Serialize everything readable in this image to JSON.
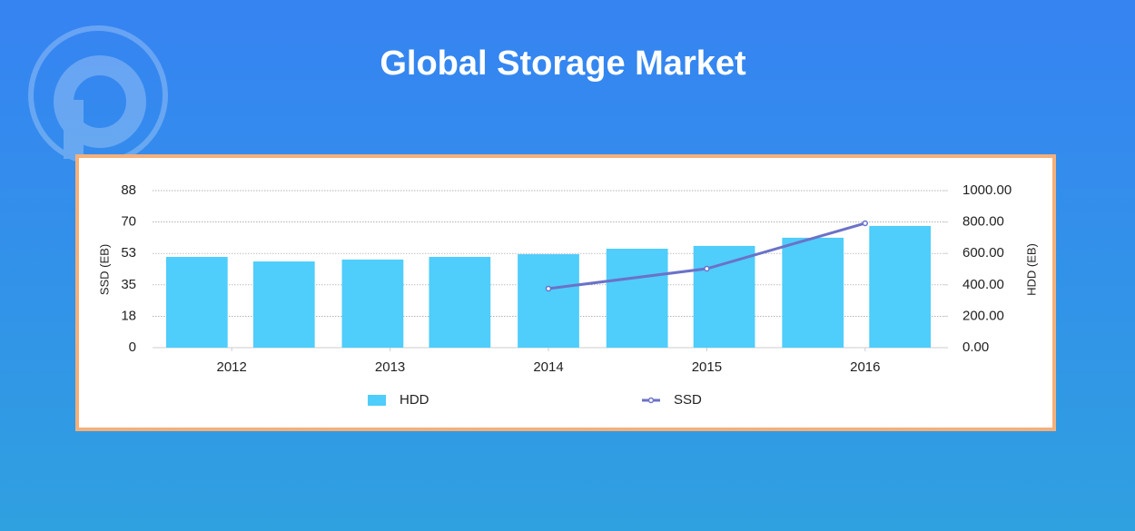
{
  "chart_data": {
    "type": "combo",
    "title": "Global Storage Market",
    "y_label": "SSD (EB)",
    "y2_label": "HDD (EB)",
    "xlim": [
      2011.5,
      2016.5
    ],
    "xticks": [
      2012,
      2013,
      2014,
      2015,
      2016
    ],
    "ylim": [
      0,
      87.5
    ],
    "yticks": [
      0,
      {
        "value": 17.5,
        "label": "18"
      },
      35,
      {
        "value": 52.5,
        "label": "53"
      },
      70,
      {
        "value": 87.5,
        "label": "88"
      }
    ],
    "y2lim": [
      0,
      1000
    ],
    "y2ticks": [
      {
        "value": 0,
        "label": "0.00"
      },
      {
        "value": 200,
        "label": "200.00"
      },
      {
        "value": 400,
        "label": "400.00"
      },
      {
        "value": 600,
        "label": "600.00"
      },
      {
        "value": 800,
        "label": "800.00"
      },
      {
        "value": 1000,
        "label": "1000.00"
      }
    ],
    "grid": true,
    "legend": "bottom",
    "series": [
      {
        "name": "HDD",
        "type": "bar",
        "axis": "y2",
        "color": "#4fcdfb",
        "x": [
          2011.78,
          2012.33,
          2012.89,
          2013.44,
          2014.0,
          2014.56,
          2015.11,
          2015.67,
          2016.22
        ],
        "values": [
          578,
          549,
          561,
          578,
          595,
          630,
          648,
          700,
          775
        ]
      },
      {
        "name": "SSD",
        "type": "line",
        "color": "#6b72c8",
        "x": [
          2014,
          2015,
          2016
        ],
        "values": [
          32.9,
          44.0,
          69.3
        ]
      }
    ]
  }
}
